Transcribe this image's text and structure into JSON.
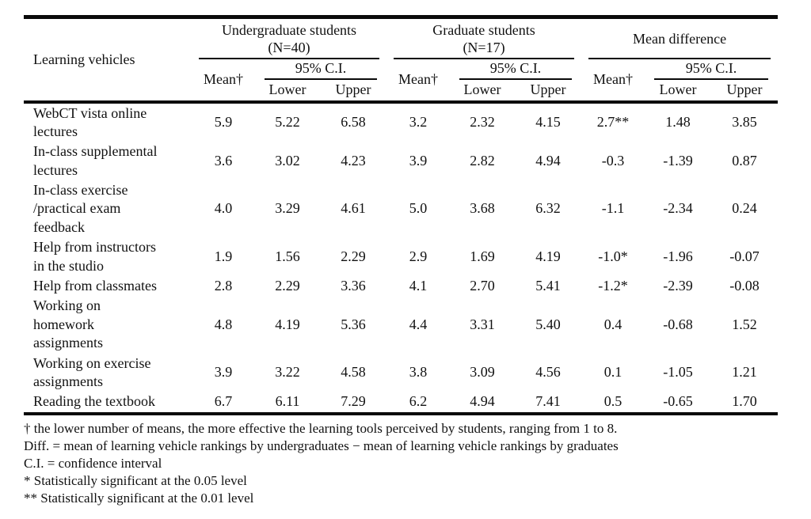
{
  "colors": {
    "background": "#ffffff",
    "text": "#111111",
    "rule": "#0a0a0a"
  },
  "table": {
    "row_header": "Learning vehicles",
    "groups": [
      {
        "title": "Undergraduate students\n(N=40)",
        "mean_label": "Mean†",
        "ci_label": "95% C.I.",
        "lower_label": "Lower",
        "upper_label": "Upper"
      },
      {
        "title": "Graduate students\n(N=17)",
        "mean_label": "Mean†",
        "ci_label": "95% C.I.",
        "lower_label": "Lower",
        "upper_label": "Upper"
      },
      {
        "title": "Mean difference",
        "mean_label": "Mean†",
        "ci_label": "95% C.I.",
        "lower_label": "Lower",
        "upper_label": "Upper"
      }
    ],
    "rows": [
      {
        "label": "WebCT vista online\nlectures",
        "values": [
          "5.9",
          "5.22",
          "6.58",
          "3.2",
          "2.32",
          "4.15",
          "2.7**",
          "1.48",
          "3.85"
        ]
      },
      {
        "label": "In-class supplemental\nlectures",
        "values": [
          "3.6",
          "3.02",
          "4.23",
          "3.9",
          "2.82",
          "4.94",
          "-0.3",
          "-1.39",
          "0.87"
        ]
      },
      {
        "label": "In-class exercise\n/practical exam\nfeedback",
        "values": [
          "4.0",
          "3.29",
          "4.61",
          "5.0",
          "3.68",
          "6.32",
          "-1.1",
          "-2.34",
          "0.24"
        ]
      },
      {
        "label": "Help from instructors\nin the studio",
        "values": [
          "1.9",
          "1.56",
          "2.29",
          "2.9",
          "1.69",
          "4.19",
          "-1.0*",
          "-1.96",
          "-0.07"
        ]
      },
      {
        "label": "Help from classmates",
        "values": [
          "2.8",
          "2.29",
          "3.36",
          "4.1",
          "2.70",
          "5.41",
          "-1.2*",
          "-2.39",
          "-0.08"
        ]
      },
      {
        "label": "Working on\nhomework\nassignments",
        "values": [
          "4.8",
          "4.19",
          "5.36",
          "4.4",
          "3.31",
          "5.40",
          "0.4",
          "-0.68",
          "1.52"
        ]
      },
      {
        "label": "Working on exercise\nassignments",
        "values": [
          "3.9",
          "3.22",
          "4.58",
          "3.8",
          "3.09",
          "4.56",
          "0.1",
          "-1.05",
          "1.21"
        ]
      },
      {
        "label": "Reading the textbook",
        "values": [
          "6.7",
          "6.11",
          "7.29",
          "6.2",
          "4.94",
          "7.41",
          "0.5",
          "-0.65",
          "1.70"
        ]
      }
    ]
  },
  "footnotes": [
    "† the lower number of means, the more effective the learning tools perceived by students, ranging from 1 to 8.",
    "Diff. = mean of learning vehicle rankings by undergraduates − mean of learning vehicle rankings by graduates",
    "C.I. = confidence interval",
    "* Statistically significant at the 0.05 level",
    "** Statistically significant at the 0.01 level"
  ]
}
